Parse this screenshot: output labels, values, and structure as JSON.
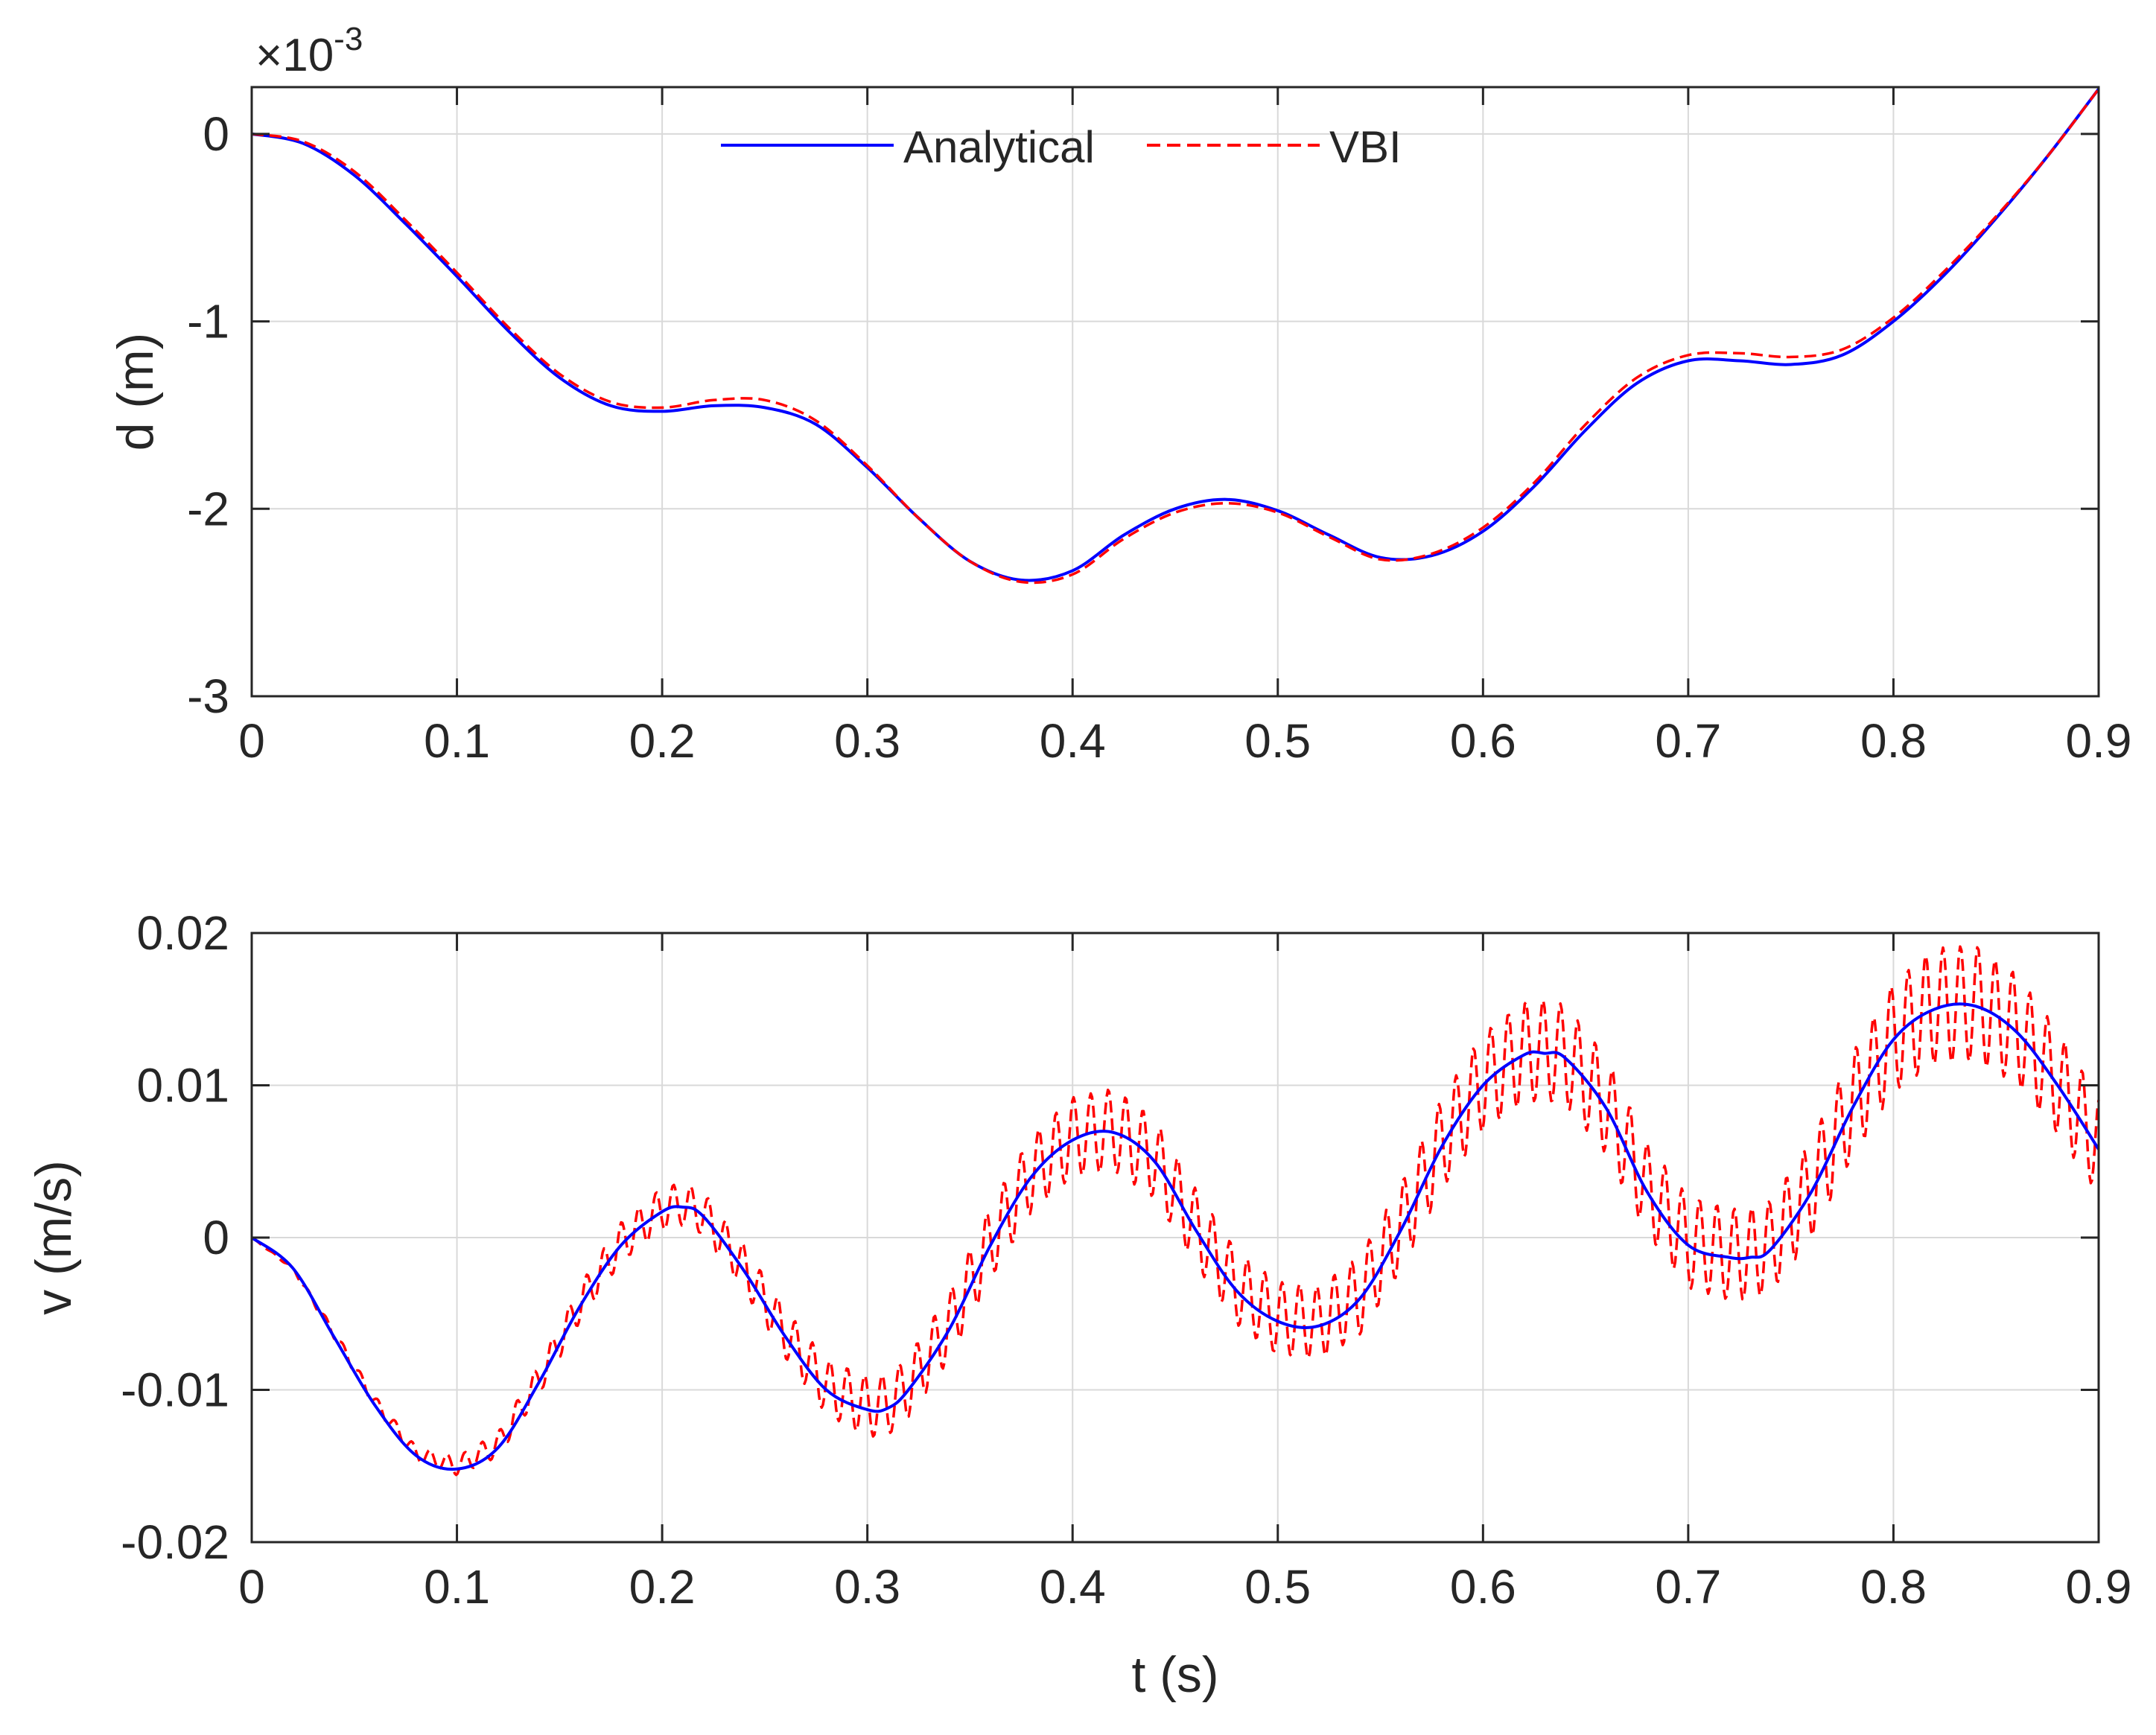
{
  "chart_data": [
    {
      "id": "displacement",
      "type": "line",
      "ylabel": "d (m)",
      "xlabel": "",
      "y_multiplier": "×10",
      "y_multiplier_exp": "-3",
      "xlim": [
        0,
        0.9
      ],
      "ylim": [
        -3,
        0.25
      ],
      "x_ticks": [
        0,
        0.1,
        0.2,
        0.3,
        0.4,
        0.5,
        0.6,
        0.7,
        0.8,
        0.9
      ],
      "x_tick_labels": [
        "0",
        "0.1",
        "0.2",
        "0.3",
        "0.4",
        "0.5",
        "0.6",
        "0.7",
        "0.8",
        "0.9"
      ],
      "y_ticks": [
        -3,
        -2,
        -1,
        0
      ],
      "y_tick_labels": [
        "-3",
        "-2",
        "-1",
        "0"
      ],
      "grid": true,
      "legend": "top-center",
      "series": [
        {
          "name": "Analytical",
          "color": "#0000ff",
          "style": "solid",
          "x": [
            0,
            0.025,
            0.05,
            0.075,
            0.1,
            0.125,
            0.15,
            0.175,
            0.2,
            0.225,
            0.25,
            0.275,
            0.3,
            0.325,
            0.35,
            0.375,
            0.4,
            0.425,
            0.45,
            0.475,
            0.5,
            0.525,
            0.55,
            0.575,
            0.6,
            0.625,
            0.65,
            0.675,
            0.7,
            0.725,
            0.75,
            0.775,
            0.8,
            0.825,
            0.85,
            0.875,
            0.9
          ],
          "y": [
            0,
            -0.05,
            -0.22,
            -0.48,
            -0.76,
            -1.05,
            -1.3,
            -1.45,
            -1.48,
            -1.45,
            -1.46,
            -1.55,
            -1.78,
            -2.05,
            -2.28,
            -2.38,
            -2.33,
            -2.14,
            -2.0,
            -1.95,
            -2.01,
            -2.14,
            -2.26,
            -2.25,
            -2.12,
            -1.88,
            -1.58,
            -1.33,
            -1.21,
            -1.21,
            -1.23,
            -1.18,
            -1.0,
            -0.75,
            -0.45,
            -0.12,
            0.24
          ]
        },
        {
          "name": "VBI",
          "color": "#ff0000",
          "style": "dashed",
          "x": [
            0,
            0.025,
            0.05,
            0.075,
            0.1,
            0.125,
            0.15,
            0.175,
            0.2,
            0.225,
            0.25,
            0.275,
            0.3,
            0.325,
            0.35,
            0.375,
            0.4,
            0.425,
            0.45,
            0.475,
            0.5,
            0.525,
            0.55,
            0.575,
            0.6,
            0.625,
            0.65,
            0.675,
            0.7,
            0.725,
            0.75,
            0.775,
            0.8,
            0.825,
            0.85,
            0.875,
            0.9
          ],
          "y": [
            0,
            -0.04,
            -0.2,
            -0.46,
            -0.74,
            -1.03,
            -1.28,
            -1.43,
            -1.46,
            -1.42,
            -1.42,
            -1.53,
            -1.77,
            -2.05,
            -2.28,
            -2.39,
            -2.35,
            -2.16,
            -2.02,
            -1.97,
            -2.02,
            -2.15,
            -2.27,
            -2.24,
            -2.1,
            -1.86,
            -1.55,
            -1.3,
            -1.18,
            -1.17,
            -1.19,
            -1.15,
            -0.98,
            -0.73,
            -0.44,
            -0.12,
            0.24
          ]
        }
      ]
    },
    {
      "id": "velocity",
      "type": "line",
      "ylabel": "v (m/s)",
      "xlabel": "t (s)",
      "xlim": [
        0,
        0.9
      ],
      "ylim": [
        -0.02,
        0.02
      ],
      "x_ticks": [
        0,
        0.1,
        0.2,
        0.3,
        0.4,
        0.5,
        0.6,
        0.7,
        0.8,
        0.9
      ],
      "x_tick_labels": [
        "0",
        "0.1",
        "0.2",
        "0.3",
        "0.4",
        "0.5",
        "0.6",
        "0.7",
        "0.8",
        "0.9"
      ],
      "y_ticks": [
        -0.02,
        -0.01,
        0,
        0.01,
        0.02
      ],
      "y_tick_labels": [
        "-0.02",
        "-0.01",
        "0",
        "0.01",
        "0.02"
      ],
      "grid": true,
      "series": [
        {
          "name": "Analytical",
          "color": "#0000ff",
          "style": "solid",
          "x": [
            0,
            0.02,
            0.04,
            0.06,
            0.08,
            0.1,
            0.12,
            0.14,
            0.16,
            0.18,
            0.2,
            0.21,
            0.22,
            0.24,
            0.26,
            0.28,
            0.3,
            0.31,
            0.32,
            0.34,
            0.36,
            0.38,
            0.4,
            0.42,
            0.44,
            0.46,
            0.48,
            0.5,
            0.52,
            0.54,
            0.56,
            0.58,
            0.6,
            0.62,
            0.63,
            0.64,
            0.66,
            0.68,
            0.7,
            0.72,
            0.73,
            0.74,
            0.76,
            0.78,
            0.8,
            0.82,
            0.84,
            0.86,
            0.88,
            0.9
          ],
          "y": [
            0,
            -0.002,
            -0.0065,
            -0.011,
            -0.0143,
            -0.0152,
            -0.0138,
            -0.0095,
            -0.0045,
            -0.0005,
            0.0017,
            0.002,
            0.0014,
            -0.0022,
            -0.0065,
            -0.01,
            -0.0113,
            -0.0112,
            -0.01,
            -0.006,
            -0.0005,
            0.004,
            0.0064,
            0.0069,
            0.005,
            0.0005,
            -0.0035,
            -0.0055,
            -0.0058,
            -0.004,
            0.0005,
            0.006,
            0.01,
            0.012,
            0.0121,
            0.0118,
            0.0085,
            0.003,
            -0.0005,
            -0.0013,
            -0.0013,
            -0.0008,
            0.003,
            0.0085,
            0.013,
            0.015,
            0.0152,
            0.0135,
            0.01,
            0.0058
          ]
        },
        {
          "name": "VBI",
          "color": "#ff0000",
          "style": "dashed",
          "x": [
            0,
            0.02,
            0.04,
            0.06,
            0.08,
            0.1,
            0.12,
            0.14,
            0.16,
            0.18,
            0.2,
            0.21,
            0.22,
            0.24,
            0.26,
            0.28,
            0.3,
            0.31,
            0.32,
            0.34,
            0.36,
            0.38,
            0.4,
            0.42,
            0.44,
            0.46,
            0.48,
            0.5,
            0.52,
            0.54,
            0.56,
            0.58,
            0.6,
            0.62,
            0.63,
            0.64,
            0.66,
            0.68,
            0.7,
            0.72,
            0.73,
            0.74,
            0.76,
            0.78,
            0.8,
            0.82,
            0.84,
            0.86,
            0.88,
            0.9
          ],
          "y": [
            0,
            -0.002,
            -0.0063,
            -0.0108,
            -0.0142,
            -0.015,
            -0.0136,
            -0.0093,
            -0.0043,
            -0.0003,
            0.0019,
            0.0022,
            0.0016,
            -0.002,
            -0.0063,
            -0.0098,
            -0.0111,
            -0.011,
            -0.0098,
            -0.0058,
            -0.0003,
            0.0042,
            0.0066,
            0.0071,
            0.0052,
            0.0007,
            -0.0033,
            -0.0053,
            -0.0056,
            -0.0038,
            0.0007,
            0.0062,
            0.0102,
            0.0122,
            0.0123,
            0.012,
            0.0087,
            0.0032,
            -0.0003,
            -0.0011,
            -0.0011,
            -0.0006,
            0.0032,
            0.0087,
            0.0132,
            0.0152,
            0.0154,
            0.0137,
            0.0102,
            0.006
          ],
          "oscillation_amplitude": [
            0,
            0.0001,
            0.0003,
            0.0004,
            0.0005,
            0.0006,
            0.0008,
            0.001,
            0.0012,
            0.0013,
            0.0014,
            0.0014,
            0.0014,
            0.0015,
            0.0016,
            0.0018,
            0.002,
            0.002,
            0.002,
            0.0022,
            0.0024,
            0.0025,
            0.0026,
            0.0027,
            0.0026,
            0.0025,
            0.0024,
            0.0024,
            0.0024,
            0.0026,
            0.0028,
            0.003,
            0.0032,
            0.0033,
            0.0033,
            0.0033,
            0.0032,
            0.003,
            0.003,
            0.003,
            0.003,
            0.003,
            0.0032,
            0.0034,
            0.0036,
            0.0038,
            0.0038,
            0.0036,
            0.0034,
            0.0032
          ]
        }
      ]
    }
  ]
}
